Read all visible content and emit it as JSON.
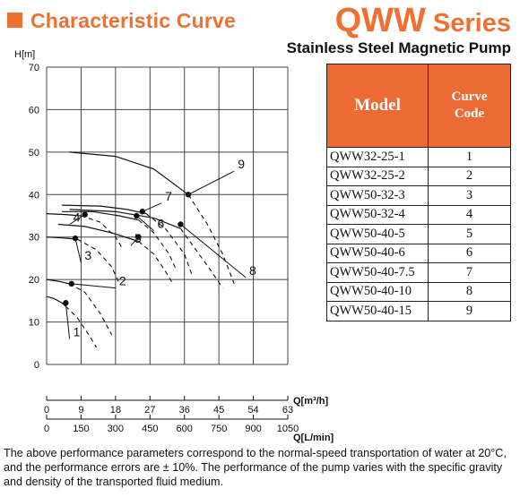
{
  "header": {
    "title": "Characteristic Curve",
    "series_big": "QWW",
    "series_small": " Series",
    "subtitle": "Stainless Steel Magnetic Pump"
  },
  "table": {
    "col_model": "Model",
    "col_code_line1": "Curve",
    "col_code_line2": "Code",
    "rows": [
      {
        "model": "QWW32-25-1",
        "code": "1"
      },
      {
        "model": "QWW32-25-2",
        "code": "2"
      },
      {
        "model": "QWW50-32-3",
        "code": "3"
      },
      {
        "model": "QWW50-32-4",
        "code": "4"
      },
      {
        "model": "QWW50-40-5",
        "code": "5"
      },
      {
        "model": "QWW50-40-6",
        "code": "6"
      },
      {
        "model": "QWW50-40-7.5",
        "code": "7"
      },
      {
        "model": "QWW50-40-10",
        "code": "8"
      },
      {
        "model": "QWW50-40-15",
        "code": "9"
      }
    ]
  },
  "note": "The above performance parameters correspond to the normal-speed transportation of water at 20°C, and the performance errors are ± 10%. The performance of the pump varies with the specific gravity and density of the transported fluid medium.",
  "chart_data": {
    "type": "line",
    "ylabel": "H[m]",
    "xlabel": "Q[m³/h]",
    "x2label": "Q[L/min]",
    "xlim": [
      0,
      63
    ],
    "ylim": [
      0,
      70
    ],
    "yticks": [
      0,
      10,
      20,
      30,
      40,
      50,
      60,
      70
    ],
    "xticks": [
      0,
      9,
      18,
      27,
      36,
      45,
      54,
      63
    ],
    "x2ticks": [
      0,
      150,
      300,
      450,
      600,
      750,
      900,
      1050
    ],
    "grid": true,
    "series": [
      {
        "name": "1",
        "solid": [
          [
            0,
            16
          ],
          [
            2,
            15.5
          ],
          [
            4,
            14.5
          ],
          [
            5,
            13.7
          ]
        ],
        "dashed": [
          [
            5,
            13.7
          ],
          [
            8,
            11
          ],
          [
            11,
            7
          ],
          [
            13,
            4
          ]
        ],
        "op": [
          5,
          14.5
        ],
        "label_pos": [
          6,
          6
        ]
      },
      {
        "name": "2",
        "solid": [
          [
            0,
            20
          ],
          [
            3,
            19.6
          ],
          [
            6,
            19
          ]
        ],
        "dashed": [
          [
            6,
            19
          ],
          [
            10,
            17
          ],
          [
            14,
            12
          ],
          [
            17,
            7
          ]
        ],
        "op": [
          6.5,
          19
        ],
        "label_pos": [
          18,
          18
        ]
      },
      {
        "name": "3",
        "solid": [
          [
            0,
            30
          ],
          [
            4,
            29.8
          ],
          [
            8,
            29.5
          ]
        ],
        "dashed": [
          [
            8,
            29.5
          ],
          [
            13,
            27
          ],
          [
            17,
            23
          ],
          [
            19,
            19
          ]
        ],
        "op": [
          7.5,
          29.7
        ],
        "label_pos": [
          9,
          24
        ]
      },
      {
        "name": "4",
        "solid": [
          [
            0,
            35.5
          ],
          [
            5,
            35.3
          ],
          [
            9,
            35
          ]
        ],
        "dashed": [
          [
            9,
            35
          ],
          [
            14,
            33.5
          ],
          [
            18,
            30
          ],
          [
            20,
            27
          ]
        ],
        "op": [
          10,
          35.3
        ],
        "label_pos": [
          6,
          33
        ]
      },
      {
        "name": "5",
        "solid": [
          [
            3,
            33
          ],
          [
            10,
            32.5
          ],
          [
            17,
            31
          ],
          [
            24,
            29
          ]
        ],
        "dashed": [
          [
            24,
            29
          ],
          [
            28,
            26
          ],
          [
            31,
            22
          ],
          [
            33,
            19
          ]
        ],
        "op": [
          24,
          30
        ],
        "label_pos": [
          22,
          28
        ]
      },
      {
        "name": "6",
        "solid": [
          [
            4,
            36
          ],
          [
            12,
            36
          ],
          [
            19,
            35
          ],
          [
            24,
            34
          ]
        ],
        "dashed": [
          [
            24,
            34
          ],
          [
            28,
            31
          ],
          [
            32,
            26
          ],
          [
            34,
            22
          ]
        ],
        "op": [
          23.5,
          35
        ],
        "label_pos": [
          28,
          31.5
        ]
      },
      {
        "name": "7",
        "solid": [
          [
            4,
            37.5
          ],
          [
            14,
            37.3
          ],
          [
            21,
            36.5
          ],
          [
            26,
            35.5
          ]
        ],
        "dashed": [
          [
            26,
            35.5
          ],
          [
            31,
            32
          ],
          [
            36,
            26
          ],
          [
            38,
            21
          ]
        ],
        "op": [
          25,
          36
        ],
        "label_pos": [
          30,
          38
        ]
      },
      {
        "name": "8",
        "solid": [
          [
            6,
            36.5
          ],
          [
            18,
            36
          ],
          [
            28,
            34.5
          ],
          [
            35,
            32
          ]
        ],
        "dashed": [
          [
            35,
            32
          ],
          [
            39,
            27
          ],
          [
            43,
            22
          ],
          [
            46,
            18
          ]
        ],
        "op": [
          35,
          33
        ],
        "label_pos": [
          52,
          20.5
        ]
      },
      {
        "name": "9",
        "solid": [
          [
            6,
            50
          ],
          [
            18,
            49
          ],
          [
            28,
            46
          ],
          [
            37,
            40
          ]
        ],
        "dashed": [
          [
            37,
            40
          ],
          [
            42,
            33
          ],
          [
            46,
            26
          ],
          [
            49,
            19
          ]
        ],
        "op": [
          37,
          40
        ],
        "label_pos": [
          49,
          45.5
        ]
      }
    ]
  }
}
